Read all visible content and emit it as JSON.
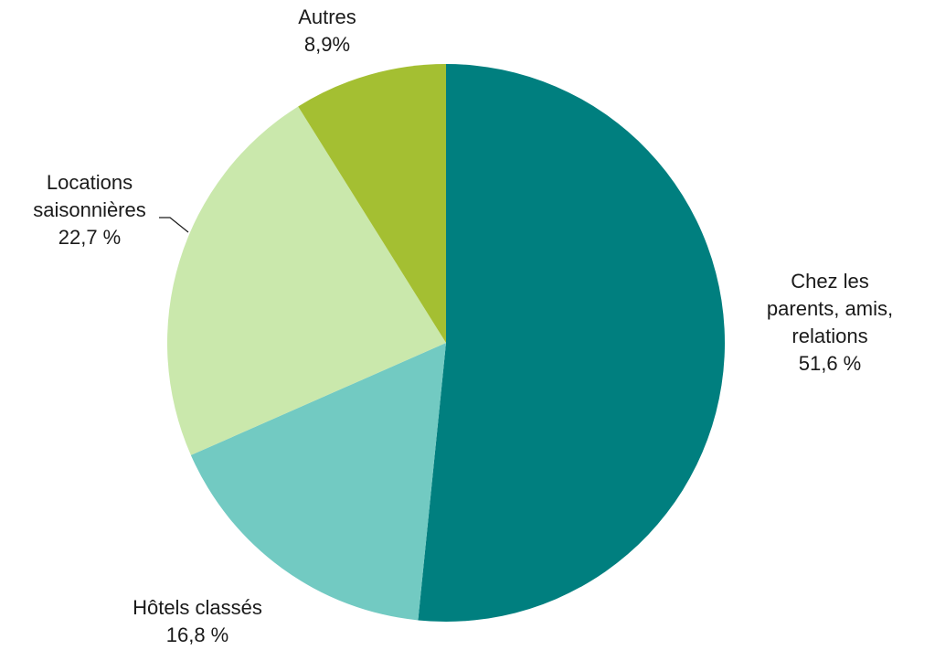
{
  "chart_data": {
    "type": "pie",
    "slices": [
      {
        "label_lines": [
          "Chez les",
          "parents, amis,",
          "relations"
        ],
        "value_text": "51,6 %",
        "value": 51.6,
        "color": "#007f7f"
      },
      {
        "label_lines": [
          "Hôtels classés"
        ],
        "value_text": "16,8 %",
        "value": 16.8,
        "color": "#72cac2"
      },
      {
        "label_lines": [
          "Locations",
          "saisonnières"
        ],
        "value_text": "22,7 %",
        "value": 22.7,
        "color": "#cae8ac"
      },
      {
        "label_lines": [
          "Autres"
        ],
        "value_text": "8,9%",
        "value": 8.9,
        "color": "#a4bf32"
      }
    ]
  }
}
